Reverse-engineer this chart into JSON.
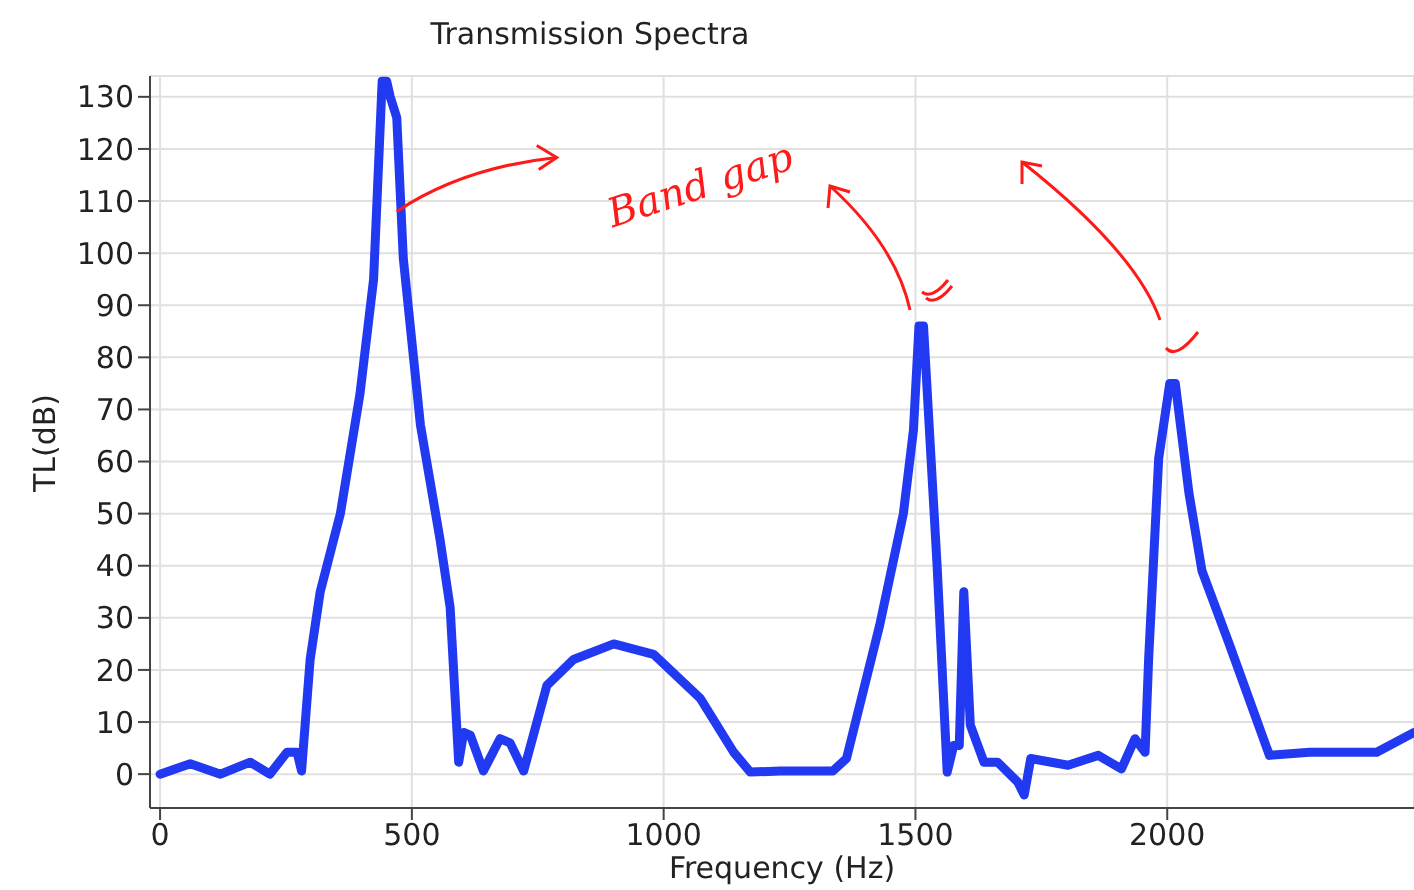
{
  "chart_data": {
    "type": "line",
    "title": "Transmission Spectra",
    "xlabel": "Frequency (Hz)",
    "ylabel": "TL(dB)",
    "annotations": [
      {
        "text": "Band gap",
        "x": 470,
        "y": 108
      }
    ],
    "series": [
      {
        "color": "#2139f0",
        "x": [
          0,
          60,
          120,
          179,
          218,
          252,
          272,
          281,
          298,
          318,
          358,
          397,
          424,
          441,
          450,
          457,
          470,
          483,
          517,
          556,
          576,
          593,
          603,
          616,
          642,
          675,
          695,
          722,
          768,
          821,
          901,
          980,
          1073,
          1139,
          1172,
          1232,
          1336,
          1363,
          1429,
          1476,
          1496,
          1507,
          1516,
          1543,
          1563,
          1576,
          1587,
          1596,
          1609,
          1636,
          1663,
          1703,
          1716,
          1729,
          1803,
          1863,
          1909,
          1936,
          1956,
          1963,
          1983,
          2005,
          2016,
          2043,
          2069,
          2123,
          2203,
          2283,
          2416,
          2490
        ],
        "values": [
          0,
          2,
          0,
          2.3,
          0,
          4.2,
          4.2,
          0.6,
          22,
          35,
          50,
          73,
          95,
          133,
          133,
          130,
          126,
          99,
          67,
          45,
          32,
          2.3,
          8,
          7.5,
          0.6,
          6.8,
          6,
          0.6,
          17,
          22,
          25,
          23,
          14.5,
          4.2,
          0.4,
          0.6,
          0.6,
          3,
          28.6,
          50,
          66,
          86,
          86,
          40,
          0.4,
          5.5,
          5.5,
          35,
          9.4,
          2.3,
          2.3,
          -1.5,
          -4,
          3,
          1.7,
          3.6,
          1,
          6.8,
          4.2,
          22,
          60.6,
          75,
          75,
          54,
          39,
          25,
          3.6,
          4.2,
          4.2,
          8
        ]
      }
    ],
    "xlim": [
      -20,
      2490
    ],
    "xticks": [
      0,
      500,
      1000,
      1500,
      2000
    ],
    "ylim": [
      -6.5,
      134
    ],
    "yticks": [
      0,
      10,
      20,
      30,
      40,
      50,
      60,
      70,
      80,
      90,
      100,
      110,
      120,
      130
    ],
    "grid": true,
    "marker": "none",
    "line_style": "solid",
    "legend": false
  }
}
